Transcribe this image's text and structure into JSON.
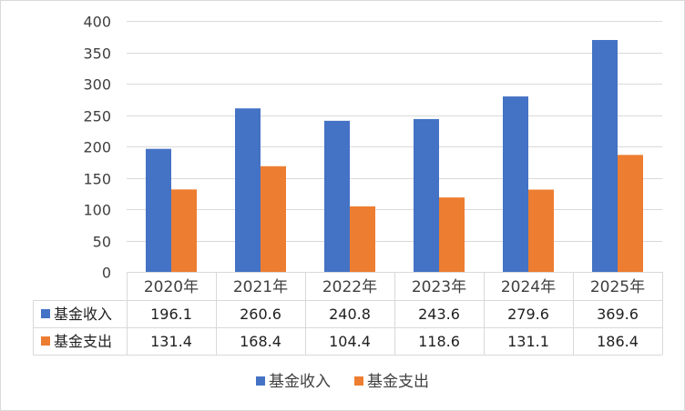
{
  "chart_data": {
    "type": "bar",
    "categories": [
      "2020年",
      "2021年",
      "2022年",
      "2023年",
      "2024年",
      "2025年"
    ],
    "series": [
      {
        "name": "基金收入",
        "values": [
          196.1,
          260.6,
          240.8,
          243.6,
          279.6,
          369.6
        ],
        "color": "#4472C4"
      },
      {
        "name": "基金支出",
        "values": [
          131.4,
          168.4,
          104.4,
          118.6,
          131.1,
          186.4
        ],
        "color": "#ED7D31"
      }
    ],
    "title": "",
    "xlabel": "",
    "ylabel": "",
    "ylim": [
      0,
      400
    ],
    "yticks": [
      0,
      50,
      100,
      150,
      200,
      250,
      300,
      350,
      400
    ],
    "grid": true,
    "data_table": true,
    "legend_position": "bottom"
  }
}
